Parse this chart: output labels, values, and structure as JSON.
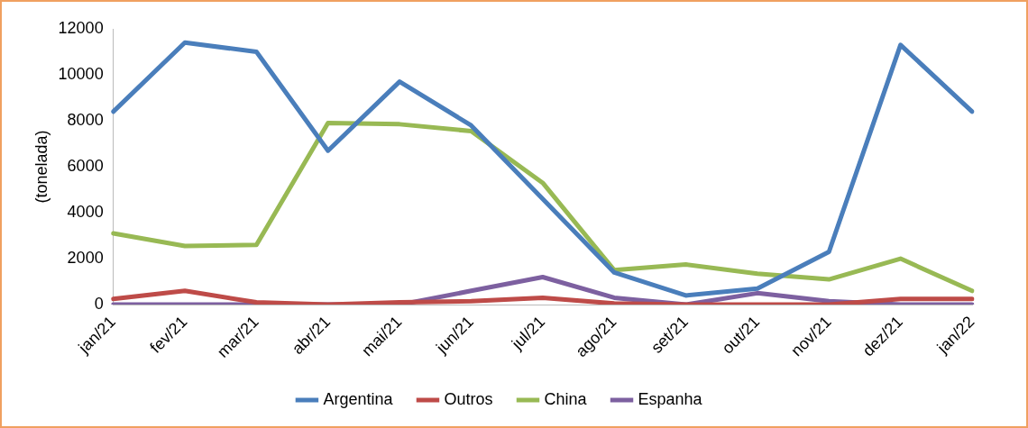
{
  "chart_data": {
    "type": "line",
    "ylabel": "(tonelada)",
    "categories": [
      "jan/21",
      "fev/21",
      "mar/21",
      "abr/21",
      "mai/21",
      "jun/21",
      "jul/21",
      "ago/21",
      "set/21",
      "out/21",
      "nov/21",
      "dez/21",
      "jan/22"
    ],
    "series": [
      {
        "name": "Argentina",
        "color": "#4a7ebb",
        "values": [
          8400,
          11400,
          11000,
          6700,
          9700,
          7800,
          4600,
          1400,
          400,
          700,
          2300,
          11300,
          8400
        ]
      },
      {
        "name": "Outros",
        "color": "#be4b48",
        "values": [
          250,
          600,
          100,
          0,
          100,
          150,
          300,
          50,
          0,
          0,
          0,
          250,
          250
        ]
      },
      {
        "name": "China",
        "color": "#98b954",
        "values": [
          3100,
          2550,
          2600,
          7900,
          7850,
          7550,
          5300,
          1500,
          1750,
          1350,
          1100,
          2000,
          600
        ]
      },
      {
        "name": "Espanha",
        "color": "#7d60a0",
        "values": [
          0,
          0,
          0,
          0,
          0,
          600,
          1200,
          300,
          0,
          500,
          150,
          0,
          0
        ]
      }
    ],
    "ylim": [
      0,
      12000
    ],
    "yticks": [
      0,
      2000,
      4000,
      6000,
      8000,
      10000,
      12000
    ],
    "grid": false,
    "legend": "bottom",
    "marker": "none",
    "line_style": "solid"
  }
}
